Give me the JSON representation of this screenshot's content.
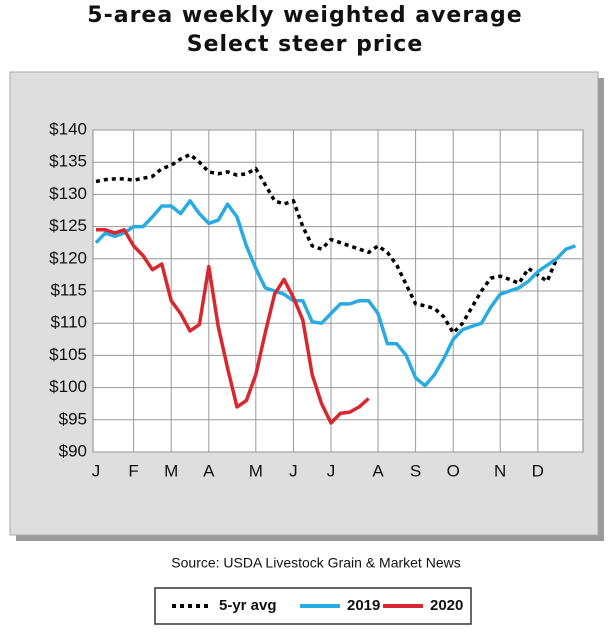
{
  "chart_data": {
    "type": "line",
    "title": "5-area weekly weighted average",
    "subtitle": "Select steer price",
    "source": "Source: USDA Livestock Grain & Market News",
    "categories": [
      "J",
      null,
      null,
      null,
      "F",
      null,
      null,
      null,
      "M",
      null,
      null,
      null,
      "A",
      null,
      null,
      null,
      null,
      "M",
      null,
      null,
      null,
      "J",
      null,
      null,
      null,
      "J",
      null,
      null,
      null,
      null,
      "A",
      null,
      null,
      null,
      "S",
      null,
      null,
      null,
      "O",
      null,
      null,
      null,
      null,
      "N",
      null,
      null,
      null,
      "D",
      null,
      null,
      null,
      null
    ],
    "ylim": [
      90,
      140
    ],
    "yticks": [
      {
        "value": 90,
        "label": "$90"
      },
      {
        "value": 95,
        "label": "$95"
      },
      {
        "value": 100,
        "label": "$100"
      },
      {
        "value": 105,
        "label": "$105"
      },
      {
        "value": 110,
        "label": "$110"
      },
      {
        "value": 115,
        "label": "$115"
      },
      {
        "value": 120,
        "label": "$120"
      },
      {
        "value": 125,
        "label": "$125"
      },
      {
        "value": 130,
        "label": "$130"
      },
      {
        "value": 135,
        "label": "$135"
      },
      {
        "value": 140,
        "label": "$140"
      }
    ],
    "grid": true,
    "series": [
      {
        "name": "5-yr avg",
        "color": "#000000",
        "dash": true,
        "values": [
          132,
          132.3,
          132.4,
          132.4,
          132.2,
          132.5,
          132.8,
          134,
          134.5,
          135.5,
          136.2,
          135,
          133.5,
          133.2,
          133.5,
          133,
          133.2,
          134,
          131.5,
          129,
          128.5,
          129,
          125,
          122,
          121.5,
          123,
          122.5,
          122,
          121.5,
          121,
          122,
          121,
          119,
          116,
          113,
          112.7,
          112.3,
          111,
          108.5,
          110,
          112.5,
          115,
          117,
          117.3,
          116.8,
          116.2,
          118.5,
          117.5,
          116.5,
          120,
          null,
          null
        ]
      },
      {
        "name": "2019",
        "color": "#29abe2",
        "values": [
          122.5,
          124,
          123.5,
          124,
          125,
          125,
          126.5,
          128.2,
          128.2,
          127,
          129,
          127,
          125.5,
          126,
          128.5,
          126.5,
          122,
          118.5,
          115.5,
          115,
          114.5,
          113.5,
          113.5,
          110.2,
          110,
          111.5,
          113,
          113,
          113.5,
          113.5,
          111.5,
          106.8,
          106.8,
          105,
          101.5,
          100.3,
          102,
          104.5,
          107.5,
          109,
          109.5,
          110,
          112.5,
          114.5,
          115,
          115.5,
          116.5,
          118,
          119,
          120,
          121.5,
          122
        ]
      },
      {
        "name": "2020",
        "color": "#d7282f",
        "values": [
          124.5,
          124.5,
          124,
          124.5,
          122,
          120.5,
          118.3,
          119.2,
          113.5,
          111.5,
          108.8,
          109.8,
          118.8,
          109.5,
          103,
          97,
          98,
          102,
          108.5,
          114.5,
          116.8,
          114,
          110.5,
          102,
          97.5,
          94.5,
          96,
          96.2,
          97,
          98.3,
          null,
          null,
          null,
          null,
          null,
          null,
          null,
          null,
          null,
          null,
          null,
          null,
          null,
          null,
          null,
          null,
          null,
          null,
          null,
          null,
          null,
          null
        ]
      }
    ]
  }
}
